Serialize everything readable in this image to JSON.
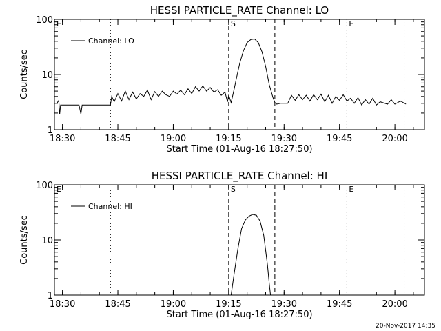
{
  "footer": {
    "timestamp": "20-Nov-2017 14:35"
  },
  "chart_data": [
    {
      "type": "line",
      "title": "HESSI PARTICLE_RATE Channel: LO",
      "xlabel": "Start Time (01-Aug-16 18:27:50)",
      "ylabel": "Counts/sec",
      "yscale": "log",
      "ylim": [
        1,
        100
      ],
      "yticks": [
        "1",
        "10",
        "100"
      ],
      "xlim": [
        "18:27:50",
        "20:08:00"
      ],
      "xticks": [
        "18:30",
        "18:45",
        "19:00",
        "19:15",
        "19:30",
        "19:45",
        "20:00"
      ],
      "markers": [
        {
          "label": "E",
          "time": "18:27:50",
          "style": "dotted"
        },
        {
          "label": "",
          "time": "18:43:00",
          "style": "dotted"
        },
        {
          "label": "S",
          "time": "19:15:00",
          "style": "dashed"
        },
        {
          "label": "",
          "time": "19:27:30",
          "style": "dashed"
        },
        {
          "label": "E",
          "time": "19:47:00",
          "style": "dotted"
        },
        {
          "label": "",
          "time": "20:02:30",
          "style": "dotted"
        }
      ],
      "legend": {
        "position": "top-left",
        "entries": [
          "Channel: LO"
        ]
      },
      "series": [
        {
          "name": "Channel: LO",
          "color": "#000000",
          "points": [
            [
              "18:28:30",
              3.0
            ],
            [
              "18:29:00",
              3.4
            ],
            [
              "18:29:15",
              1.9
            ],
            [
              "18:29:30",
              2.8
            ],
            [
              "18:34:30",
              2.8
            ],
            [
              "18:35:00",
              1.9
            ],
            [
              "18:35:20",
              2.8
            ],
            [
              "18:43:00",
              2.8
            ],
            [
              "18:43:20",
              4.0
            ],
            [
              "18:44:00",
              3.2
            ],
            [
              "18:45:00",
              4.5
            ],
            [
              "18:46:00",
              3.3
            ],
            [
              "18:47:00",
              5.0
            ],
            [
              "18:48:00",
              3.5
            ],
            [
              "18:49:00",
              4.8
            ],
            [
              "18:50:00",
              3.6
            ],
            [
              "18:51:00",
              4.5
            ],
            [
              "18:52:00",
              4.0
            ],
            [
              "18:53:00",
              5.2
            ],
            [
              "18:54:00",
              3.5
            ],
            [
              "18:55:00",
              4.9
            ],
            [
              "18:56:00",
              4.0
            ],
            [
              "18:57:00",
              5.0
            ],
            [
              "18:58:00",
              4.3
            ],
            [
              "18:59:00",
              4.0
            ],
            [
              "19:00:00",
              5.0
            ],
            [
              "19:01:00",
              4.4
            ],
            [
              "19:02:00",
              5.2
            ],
            [
              "19:03:00",
              4.3
            ],
            [
              "19:04:00",
              5.5
            ],
            [
              "19:05:00",
              4.5
            ],
            [
              "19:06:00",
              6.0
            ],
            [
              "19:07:00",
              5.0
            ],
            [
              "19:08:00",
              6.2
            ],
            [
              "19:09:00",
              5.0
            ],
            [
              "19:10:00",
              5.8
            ],
            [
              "19:11:00",
              4.8
            ],
            [
              "19:12:00",
              5.3
            ],
            [
              "19:13:00",
              4.2
            ],
            [
              "19:14:00",
              4.8
            ],
            [
              "19:14:40",
              3.2
            ],
            [
              "19:15:00",
              4.2
            ],
            [
              "19:15:40",
              3.1
            ],
            [
              "19:16:30",
              5.5
            ],
            [
              "19:17:00",
              8.0
            ],
            [
              "19:18:00",
              16.0
            ],
            [
              "19:19:00",
              27.0
            ],
            [
              "19:20:00",
              38.0
            ],
            [
              "19:21:00",
              43.0
            ],
            [
              "19:22:00",
              44.0
            ],
            [
              "19:23:00",
              38.0
            ],
            [
              "19:24:00",
              26.0
            ],
            [
              "19:25:00",
              14.0
            ],
            [
              "19:26:00",
              6.5
            ],
            [
              "19:27:00",
              3.8
            ],
            [
              "19:27:30",
              3.1
            ],
            [
              "19:28:00",
              2.9
            ],
            [
              "19:29:00",
              3.0
            ],
            [
              "19:31:00",
              3.0
            ],
            [
              "19:32:00",
              4.2
            ],
            [
              "19:33:00",
              3.4
            ],
            [
              "19:34:00",
              4.3
            ],
            [
              "19:35:00",
              3.5
            ],
            [
              "19:36:00",
              4.2
            ],
            [
              "19:37:00",
              3.3
            ],
            [
              "19:38:00",
              4.3
            ],
            [
              "19:39:00",
              3.5
            ],
            [
              "19:40:00",
              4.4
            ],
            [
              "19:41:00",
              3.2
            ],
            [
              "19:42:00",
              4.2
            ],
            [
              "19:43:00",
              3.0
            ],
            [
              "19:44:00",
              4.0
            ],
            [
              "19:45:00",
              3.4
            ],
            [
              "19:46:00",
              4.3
            ],
            [
              "19:47:00",
              3.3
            ],
            [
              "19:48:00",
              3.7
            ],
            [
              "19:49:00",
              3.0
            ],
            [
              "19:50:00",
              3.8
            ],
            [
              "19:51:00",
              2.8
            ],
            [
              "19:52:00",
              3.5
            ],
            [
              "19:53:00",
              2.9
            ],
            [
              "19:54:00",
              3.7
            ],
            [
              "19:55:00",
              2.8
            ],
            [
              "19:56:00",
              3.2
            ],
            [
              "19:58:00",
              2.9
            ],
            [
              "19:59:00",
              3.5
            ],
            [
              "20:00:00",
              2.9
            ],
            [
              "20:01:30",
              3.3
            ],
            [
              "20:03:00",
              2.9
            ]
          ]
        }
      ]
    },
    {
      "type": "line",
      "title": "HESSI PARTICLE_RATE Channel: HI",
      "xlabel": "Start Time (01-Aug-16 18:27:50)",
      "ylabel": "Counts/sec",
      "yscale": "log",
      "ylim": [
        1,
        100
      ],
      "yticks": [
        "1",
        "10",
        "100"
      ],
      "xlim": [
        "18:27:50",
        "20:08:00"
      ],
      "xticks": [
        "18:30",
        "18:45",
        "19:00",
        "19:15",
        "19:30",
        "19:45",
        "20:00"
      ],
      "markers": [
        {
          "label": "E",
          "time": "18:27:50",
          "style": "dotted"
        },
        {
          "label": "",
          "time": "18:43:00",
          "style": "dotted"
        },
        {
          "label": "S",
          "time": "19:15:00",
          "style": "dashed"
        },
        {
          "label": "",
          "time": "19:27:30",
          "style": "dashed"
        },
        {
          "label": "E",
          "time": "19:47:00",
          "style": "dotted"
        },
        {
          "label": "",
          "time": "20:02:30",
          "style": "dotted"
        }
      ],
      "legend": {
        "position": "top-left",
        "entries": [
          "Channel: HI"
        ]
      },
      "series": [
        {
          "name": "Channel: HI",
          "color": "#000000",
          "points": [
            [
              "19:15:40",
              1.0
            ],
            [
              "19:16:30",
              2.5
            ],
            [
              "19:17:30",
              7.0
            ],
            [
              "19:18:30",
              16.0
            ],
            [
              "19:19:30",
              23.0
            ],
            [
              "19:20:30",
              27.0
            ],
            [
              "19:21:30",
              29.0
            ],
            [
              "19:22:30",
              28.0
            ],
            [
              "19:23:30",
              22.0
            ],
            [
              "19:24:30",
              12.0
            ],
            [
              "19:25:00",
              6.5
            ],
            [
              "19:25:30",
              3.5
            ],
            [
              "19:26:00",
              1.6
            ],
            [
              "19:26:20",
              1.0
            ]
          ]
        }
      ]
    }
  ]
}
